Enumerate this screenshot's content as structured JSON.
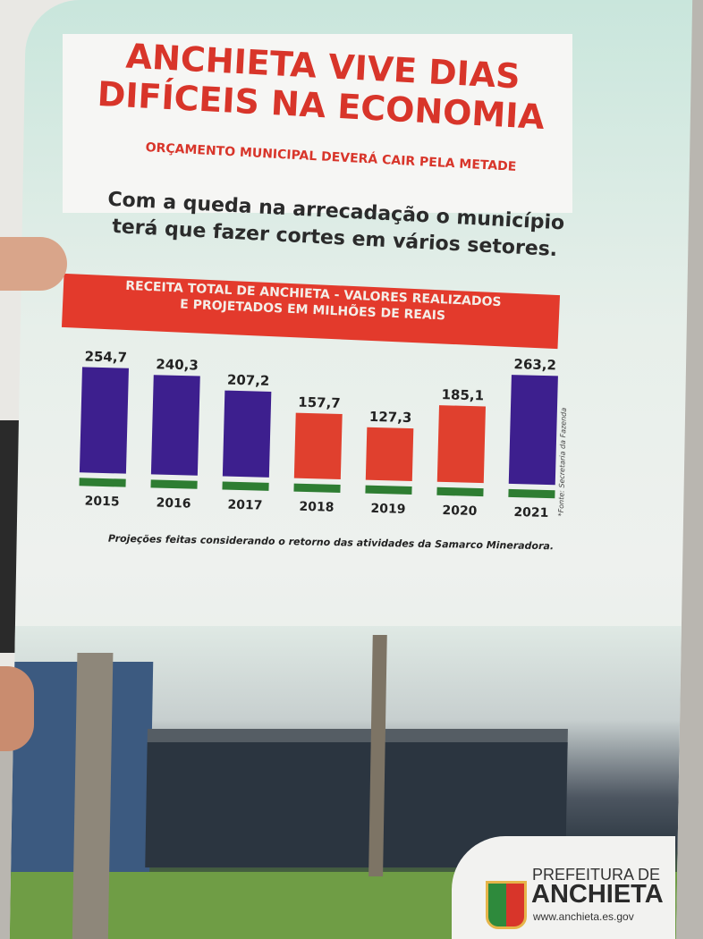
{
  "headline": {
    "title_line1": "ANCHIETA VIVE DIAS",
    "title_line2": "DIFÍCEIS NA ECONOMIA",
    "subtitle": "ORÇAMENTO MUNICIPAL DEVERÁ CAIR PELA METADE",
    "lede_line1": "Com a queda na arrecadação o município",
    "lede_line2": "terá que fazer cortes em vários setores."
  },
  "chart_data": {
    "type": "bar",
    "title_line1": "RECEITA TOTAL DE ANCHIETA - VALORES REALIZADOS",
    "title_line2": "E PROJETADOS EM MILHÕES DE REAIS",
    "categories": [
      "2015",
      "2016",
      "2017",
      "2018",
      "2019",
      "2020",
      "2021"
    ],
    "values": [
      254.7,
      240.3,
      207.2,
      157.7,
      127.3,
      185.1,
      263.2
    ],
    "value_labels": [
      "254,7",
      "240,3",
      "207,2",
      "157,7",
      "127,3",
      "185,1",
      "263,2"
    ],
    "bar_colors": [
      "#3d1f8e",
      "#3d1f8e",
      "#3d1f8e",
      "#e0402e",
      "#e0402e",
      "#e0402e",
      "#3d1f8e"
    ],
    "base_color": "#2e7d32",
    "source": "*Fonte: Secretaria da Fazenda",
    "note": "Projeções feitas considerando o retorno das atividades da Samarco Mineradora.",
    "ylim": [
      0,
      270
    ]
  },
  "footer": {
    "logo_line1": "PREFEITURA DE",
    "logo_line2": "ANCHIETA",
    "website": "www.anchieta.es.gov"
  }
}
